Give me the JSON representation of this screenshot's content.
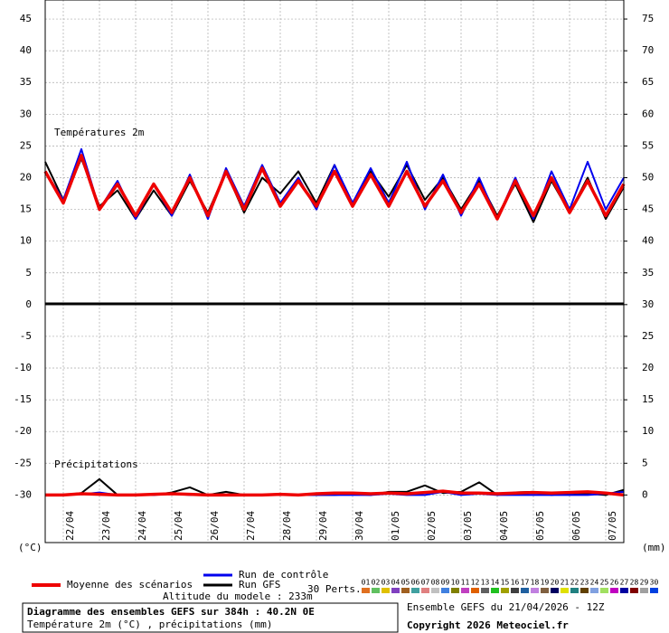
{
  "chart_data": {
    "type": "line",
    "panel_titles": [
      "Températures 2m",
      "Précipitations"
    ],
    "y_unit": "(°C)",
    "y2_unit": "(mm)",
    "xlim": [
      0,
      384
    ],
    "x": [
      0,
      12,
      24,
      36,
      48,
      60,
      72,
      84,
      96,
      108,
      120,
      132,
      144,
      156,
      168,
      180,
      192,
      204,
      216,
      228,
      240,
      252,
      264,
      276,
      288,
      300,
      312,
      324,
      336,
      348,
      360,
      372,
      384
    ],
    "xticks": [
      {
        "value": 12,
        "label": "22/04"
      },
      {
        "value": 36,
        "label": "23/04"
      },
      {
        "value": 60,
        "label": "24/04"
      },
      {
        "value": 84,
        "label": "25/04"
      },
      {
        "value": 108,
        "label": "26/04"
      },
      {
        "value": 132,
        "label": "27/04"
      },
      {
        "value": 156,
        "label": "28/04"
      },
      {
        "value": 180,
        "label": "29/04"
      },
      {
        "value": 204,
        "label": "30/04"
      },
      {
        "value": 228,
        "label": "01/05"
      },
      {
        "value": 252,
        "label": "02/05"
      },
      {
        "value": 276,
        "label": "03/05"
      },
      {
        "value": 300,
        "label": "04/05"
      },
      {
        "value": 324,
        "label": "05/05"
      },
      {
        "value": 348,
        "label": "06/05"
      },
      {
        "value": 372,
        "label": "07/05"
      }
    ],
    "ylim": [
      -37.5,
      48
    ],
    "yticks": [
      45,
      40,
      35,
      30,
      25,
      20,
      15,
      10,
      5,
      0,
      -5,
      -10,
      -15,
      -20,
      -25,
      -30
    ],
    "y2lim": [
      -7.5,
      78
    ],
    "y2ticks": [
      75,
      70,
      65,
      60,
      55,
      50,
      45,
      40,
      35,
      30,
      25,
      20,
      15,
      10,
      5,
      0
    ],
    "grid": true,
    "series": [
      {
        "name": "Moyenne des scénarios",
        "color": "#ee0000",
        "temperature": [
          21,
          16,
          23.5,
          15,
          19,
          14,
          19,
          14.5,
          20,
          14,
          21,
          15,
          21.5,
          15.5,
          19.5,
          15.5,
          21,
          15.5,
          20.5,
          15.5,
          21,
          15.5,
          19.5,
          14.5,
          19,
          13.5,
          19.5,
          14,
          20,
          14.5,
          19.5,
          14,
          19
        ],
        "precipitation": [
          0,
          0,
          0.2,
          0.1,
          0,
          0,
          0.1,
          0.2,
          0.1,
          0,
          0,
          0,
          0,
          0.1,
          0,
          0.2,
          0.3,
          0.3,
          0.2,
          0.3,
          0.2,
          0.4,
          0.6,
          0.3,
          0.3,
          0.2,
          0.3,
          0.4,
          0.3,
          0.4,
          0.5,
          0.3,
          0
        ]
      },
      {
        "name": "Run de contrôle",
        "color": "#0000ee",
        "temperature": [
          21,
          16.5,
          24.5,
          15,
          19.5,
          13.5,
          19,
          14,
          20.5,
          13.5,
          21.5,
          15.5,
          22,
          16,
          20,
          15,
          22,
          16,
          21.5,
          16,
          22.5,
          15,
          20.5,
          14,
          20,
          13.5,
          20,
          13.5,
          21,
          15,
          22.5,
          15,
          20
        ],
        "precipitation": [
          0,
          0,
          0.1,
          0.4,
          0,
          0,
          0,
          0.2,
          0,
          0,
          0,
          0,
          0,
          0,
          0,
          0,
          0,
          0,
          0,
          0.2,
          0,
          0,
          0.5,
          0,
          0.2,
          0,
          0,
          0,
          0,
          0,
          0,
          0.2,
          0.5
        ]
      },
      {
        "name": "Run GFS",
        "color": "#000000",
        "temperature": [
          22.5,
          16.5,
          23,
          15.5,
          18,
          13.5,
          18,
          14,
          19.5,
          14.5,
          21,
          14.5,
          20,
          17.5,
          21,
          16,
          22,
          15.5,
          21,
          17,
          22,
          16.5,
          20,
          15,
          19.5,
          14,
          19,
          13,
          19.5,
          14.5,
          20,
          13.5,
          18.5
        ],
        "precipitation": [
          0,
          0,
          0.3,
          2.5,
          0,
          0,
          0,
          0.4,
          1.2,
          0,
          0.5,
          0,
          0,
          0,
          0,
          0,
          0,
          0.2,
          0,
          0.5,
          0.5,
          1.5,
          0.3,
          0.5,
          2.0,
          0,
          0.4,
          0.5,
          0,
          0.3,
          0.2,
          0,
          0.8
        ]
      }
    ],
    "perturbations": {
      "label": "30 Perts.",
      "members": [
        {
          "name": "01",
          "color": "#e07020"
        },
        {
          "name": "02",
          "color": "#60c060"
        },
        {
          "name": "03",
          "color": "#e0c000"
        },
        {
          "name": "04",
          "color": "#8040c0"
        },
        {
          "name": "05",
          "color": "#a06020"
        },
        {
          "name": "06",
          "color": "#40a0a0"
        },
        {
          "name": "07",
          "color": "#e08080"
        },
        {
          "name": "08",
          "color": "#c0c0c0"
        },
        {
          "name": "09",
          "color": "#4080e0"
        },
        {
          "name": "10",
          "color": "#808000"
        },
        {
          "name": "11",
          "color": "#c040c0"
        },
        {
          "name": "12",
          "color": "#e06000"
        },
        {
          "name": "13",
          "color": "#606060"
        },
        {
          "name": "14",
          "color": "#20c020"
        },
        {
          "name": "15",
          "color": "#a0a000"
        },
        {
          "name": "16",
          "color": "#404040"
        },
        {
          "name": "17",
          "color": "#2060a0"
        },
        {
          "name": "18",
          "color": "#c080e0"
        },
        {
          "name": "19",
          "color": "#806040"
        },
        {
          "name": "20",
          "color": "#000060"
        },
        {
          "name": "21",
          "color": "#e0e000"
        },
        {
          "name": "22",
          "color": "#208080"
        },
        {
          "name": "23",
          "color": "#604000"
        },
        {
          "name": "24",
          "color": "#80a0e0"
        },
        {
          "name": "25",
          "color": "#a0e060"
        },
        {
          "name": "26",
          "color": "#c000c0"
        },
        {
          "name": "27",
          "color": "#0000a0"
        },
        {
          "name": "28",
          "color": "#800000"
        },
        {
          "name": "29",
          "color": "#a0a0a0"
        },
        {
          "name": "30",
          "color": "#0040e0"
        }
      ]
    },
    "altitude": "Altitude du modele : 233m",
    "footer_title": "Diagramme des ensembles GEFS sur 384h : 40.2N 0E",
    "footer_subtitle": "Température 2m (°C) , précipitations (mm)",
    "run_info": "Ensemble GEFS du 21/04/2026 - 12Z",
    "copyright": "Copyright 2026 Meteociel.fr"
  }
}
